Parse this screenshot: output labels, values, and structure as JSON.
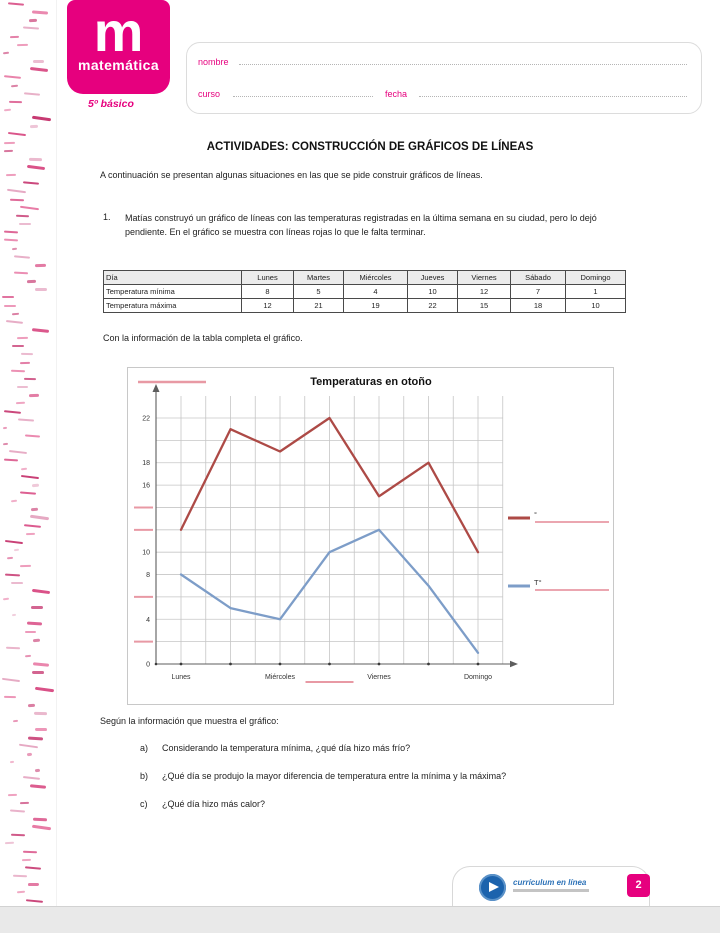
{
  "page": {
    "brand": {
      "logo_letter": "m",
      "logo_word": "matemática",
      "grade": "5º básico"
    },
    "fields": {
      "name_label": "nombre",
      "course_label": "curso",
      "date_label": "fecha"
    },
    "title": "ACTIVIDADES: CONSTRUCCIÓN DE GRÁFICOS DE LÍNEAS",
    "intro": "A continuación se presentan algunas situaciones en las que se pide construir gráficos de líneas.",
    "exercise": {
      "number": "1.",
      "text": "Matías construyó un gráfico de líneas con las temperaturas registradas en la última semana en su ciudad, pero lo dejó pendiente. En el gráfico se muestra con líneas rojas lo que le falta terminar."
    },
    "table": {
      "headers": [
        "Día",
        "Lunes",
        "Martes",
        "Miércoles",
        "Jueves",
        "Viernes",
        "Sábado",
        "Domingo"
      ],
      "rows": [
        {
          "label": "Temperatura mínima",
          "values": [
            "8",
            "5",
            "4",
            "10",
            "12",
            "7",
            "1"
          ]
        },
        {
          "label": "Temperatura máxima",
          "values": [
            "12",
            "21",
            "19",
            "22",
            "15",
            "18",
            "10"
          ]
        }
      ]
    },
    "chart_caption": "Con la información de la tabla completa el gráfico.",
    "questions": {
      "lead": "Según la información que muestra el gráfico:",
      "items": [
        {
          "letter": "a)",
          "text": "Considerando la temperatura mínima, ¿qué día hizo más frío?"
        },
        {
          "letter": "b)",
          "text": "¿Qué día se produjo la mayor diferencia de temperatura entre la mínima y la máxima?"
        },
        {
          "letter": "c)",
          "text": "¿Qué día hizo más calor?"
        }
      ]
    },
    "footer": {
      "brand": "currículum en línea",
      "page_number": "2"
    }
  },
  "chart_data": {
    "type": "line",
    "title": "Temperaturas en otoño",
    "categories": [
      "Lunes",
      "Martes",
      "Miércoles",
      "Jueves",
      "Viernes",
      "Sábado",
      "Domingo"
    ],
    "series": [
      {
        "name": "Temperatura máxima",
        "color": "#ad4a46",
        "values": [
          12,
          21,
          19,
          22,
          15,
          18,
          10
        ]
      },
      {
        "name": "Temperatura mínima",
        "color": "#7d9dc8",
        "values": [
          8,
          5,
          4,
          10,
          12,
          7,
          1
        ]
      }
    ],
    "ylim": [
      0,
      22
    ],
    "ytick_step": 2,
    "yticks_labeled": [
      22,
      18,
      16,
      10,
      8,
      4,
      0
    ],
    "yticks_blank": [
      14,
      12,
      6,
      2
    ],
    "xticks_labeled": [
      "Lunes",
      "Miércoles",
      "Viernes",
      "Domingo"
    ],
    "xticks_blank": [
      "Jueves"
    ],
    "grid": true,
    "legend_position": "right",
    "legend": [
      {
        "color": "#ad4a46",
        "label": "°"
      },
      {
        "color": "#7d9dc8",
        "label": "T°"
      }
    ],
    "blank_color": "#e899a4"
  }
}
